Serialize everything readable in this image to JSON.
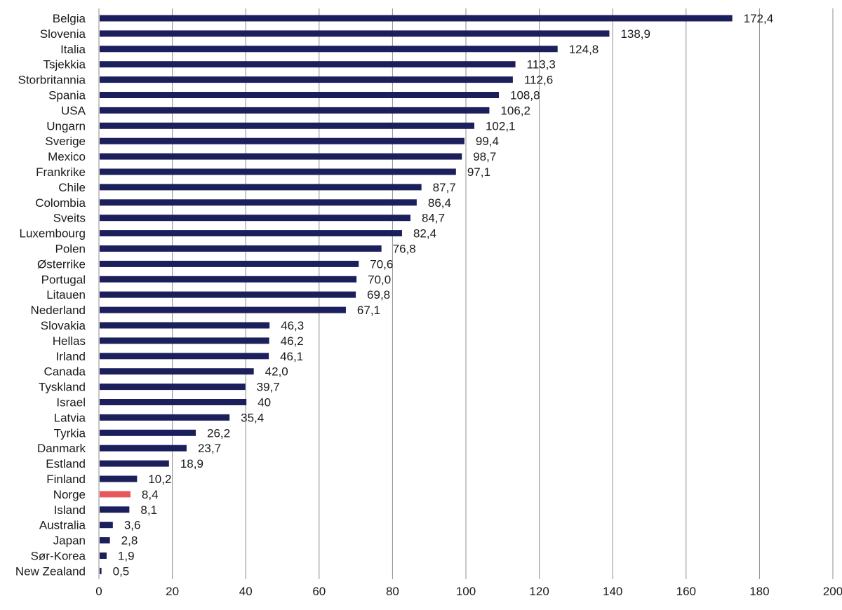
{
  "chart_data": {
    "type": "bar",
    "orientation": "horizontal",
    "title": "",
    "xlabel": "",
    "ylabel": "",
    "xlim": [
      0,
      200
    ],
    "ticks": [
      0,
      20,
      40,
      60,
      80,
      100,
      120,
      140,
      160,
      180,
      200
    ],
    "tick_labels": [
      "0",
      "20",
      "40",
      "60",
      "80",
      "100",
      "120",
      "140",
      "160",
      "180",
      "200"
    ],
    "grid": "vertical",
    "legend": "none",
    "bar_color": "#1b1f5c",
    "highlight_color": "#e8575a",
    "highlight_category": "Norge",
    "categories": [
      "Belgia",
      "Slovenia",
      "Italia",
      "Tsjekkia",
      "Storbritannia",
      "Spania",
      "USA",
      "Ungarn",
      "Sverige",
      "Mexico",
      "Frankrike",
      "Chile",
      "Colombia",
      "Sveits",
      "Luxembourg",
      "Polen",
      "Østerrike",
      "Portugal",
      "Litauen",
      "Nederland",
      "Slovakia",
      "Hellas",
      "Irland",
      "Canada",
      "Tyskland",
      "Israel",
      "Latvia",
      "Tyrkia",
      "Danmark",
      "Estland",
      "Finland",
      "Norge",
      "Island",
      "Australia",
      "Japan",
      "Sør-Korea",
      "New Zealand"
    ],
    "values": [
      172.4,
      138.9,
      124.8,
      113.3,
      112.6,
      108.8,
      106.2,
      102.1,
      99.4,
      98.7,
      97.1,
      87.7,
      86.4,
      84.7,
      82.4,
      76.8,
      70.6,
      70.0,
      69.8,
      67.1,
      46.3,
      46.2,
      46.1,
      42.0,
      39.7,
      40,
      35.4,
      26.2,
      23.7,
      18.9,
      10.2,
      8.4,
      8.1,
      3.6,
      2.8,
      1.9,
      0.5
    ],
    "value_labels": [
      "172,4",
      "138,9",
      "124,8",
      "113,3",
      "112,6",
      "108,8",
      "106,2",
      "102,1",
      "99,4",
      "98,7",
      "97,1",
      "87,7",
      "86,4",
      "84,7",
      "82,4",
      "76,8",
      "70,6",
      "70,0",
      "69,8",
      "67,1",
      "46,3",
      "46,2",
      "46,1",
      "42,0",
      "39,7",
      "40",
      "35,4",
      "26,2",
      "23,7",
      "18,9",
      "10,2",
      "8,4",
      "8,1",
      "3,6",
      "2,8",
      "1,9",
      "0,5"
    ]
  }
}
